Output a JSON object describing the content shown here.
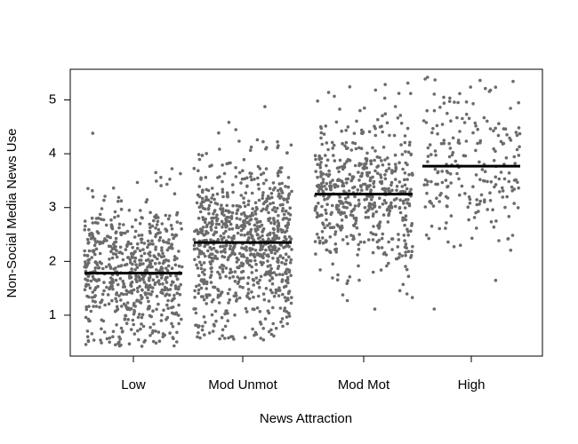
{
  "chart_data": {
    "type": "scatter",
    "title": "",
    "xlabel": "News Attraction",
    "ylabel": "Non-Social Media News Use",
    "categories": [
      "Low",
      "Mod Unmot",
      "Mod Mot",
      "High"
    ],
    "y_ticks": [
      "1",
      "2",
      "3",
      "4",
      "5"
    ],
    "ylim": [
      0.24,
      5.57
    ],
    "grid": false,
    "legend": "none",
    "point_color": "#6b6b6b",
    "mean_line_color": "#000000",
    "groups": [
      {
        "category": "Low",
        "mean": 1.78,
        "n": 650,
        "y_min": 0.42,
        "y_max": 4.4,
        "y_sd": 0.7
      },
      {
        "category": "Mod Unmot",
        "mean": 2.35,
        "n": 850,
        "y_min": 0.52,
        "y_max": 5.0,
        "y_sd": 0.8
      },
      {
        "category": "Mod Mot",
        "mean": 3.25,
        "n": 550,
        "y_min": 1.02,
        "y_max": 5.32,
        "y_sd": 0.75
      },
      {
        "category": "High",
        "mean": 3.77,
        "n": 220,
        "y_min": 0.68,
        "y_max": 5.45,
        "y_sd": 0.8
      }
    ]
  }
}
